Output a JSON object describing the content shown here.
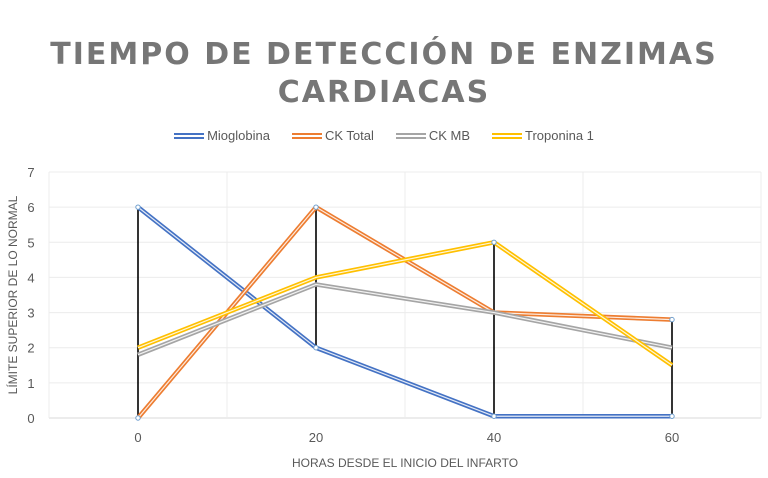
{
  "chart_data": {
    "type": "line",
    "title_lines": [
      "TIEMPO DE DETECCIÓN DE ENZIMAS",
      "CARDIACAS"
    ],
    "xlabel": "HORAS DESDE EL INICIO DEL INFARTO",
    "ylabel": "LÍMITE SUPERIOR DE LO NORMAL",
    "x": [
      0,
      20,
      40,
      60
    ],
    "x_tick_labels": [
      "0",
      "20",
      "40",
      "60"
    ],
    "y_tick_labels": [
      "0",
      "1",
      "2",
      "3",
      "4",
      "5",
      "6",
      "7"
    ],
    "xlim": [
      -10,
      70
    ],
    "ylim": [
      0,
      7
    ],
    "grid": true,
    "legend_position": "top",
    "high_low_lines": true,
    "series": [
      {
        "name": "Mioglobina",
        "values": [
          6,
          2,
          0.05,
          0.05
        ],
        "color": "#4472c4"
      },
      {
        "name": "CK Total",
        "values": [
          0,
          6,
          3,
          2.8
        ],
        "color": "#ed7d31"
      },
      {
        "name": "CK MB",
        "values": [
          1.8,
          3.8,
          3,
          2
        ],
        "color": "#a5a5a5"
      },
      {
        "name": "Troponina 1",
        "values": [
          2,
          4,
          5,
          1.5
        ],
        "color": "#ffc000"
      }
    ]
  }
}
